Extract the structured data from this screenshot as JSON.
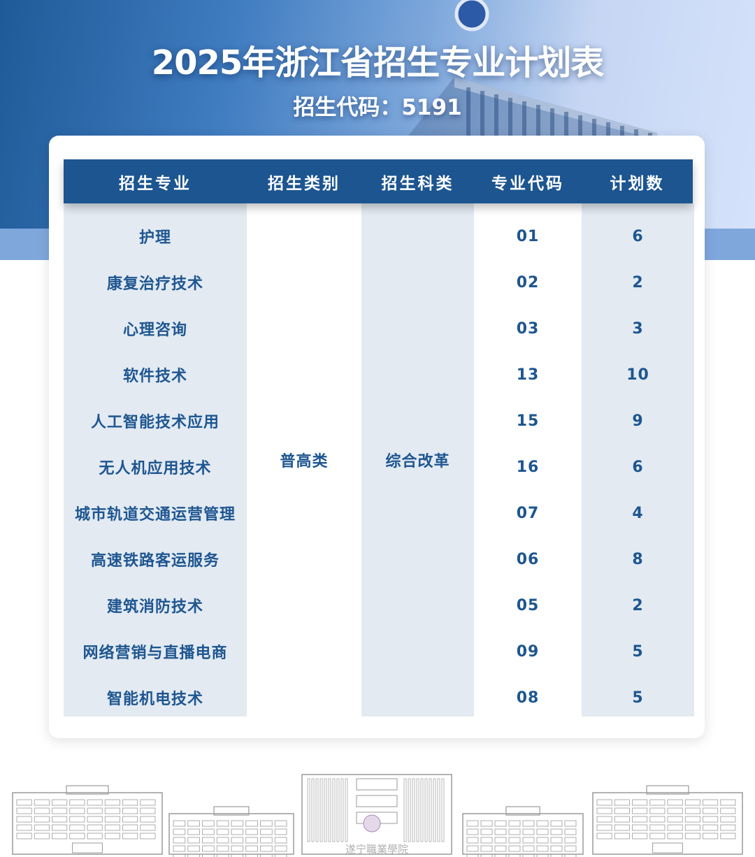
{
  "header": {
    "title": "2025年浙江省招生专业计划表",
    "code_label": "招生代码：5191"
  },
  "table": {
    "columns": [
      "招生专业",
      "招生类别",
      "招生科类",
      "专业代码",
      "计划数"
    ],
    "category": "普高类",
    "subject_type": "综合改革",
    "rows": [
      {
        "major": "护理",
        "code": "01",
        "plan": "6"
      },
      {
        "major": "康复治疗技术",
        "code": "02",
        "plan": "2"
      },
      {
        "major": "心理咨询",
        "code": "03",
        "plan": "3"
      },
      {
        "major": "软件技术",
        "code": "13",
        "plan": "10"
      },
      {
        "major": "人工智能技术应用",
        "code": "15",
        "plan": "9"
      },
      {
        "major": "无人机应用技术",
        "code": "16",
        "plan": "6"
      },
      {
        "major": "城市轨道交通运营管理",
        "code": "07",
        "plan": "4"
      },
      {
        "major": "高速铁路客运服务",
        "code": "06",
        "plan": "8"
      },
      {
        "major": "建筑消防技术",
        "code": "05",
        "plan": "2"
      },
      {
        "major": "网络营销与直播电商",
        "code": "09",
        "plan": "5"
      },
      {
        "major": "智能机电技术",
        "code": "08",
        "plan": "5"
      }
    ]
  },
  "footer": {
    "logo_text": "遂宁職業學院"
  },
  "colors": {
    "primary": "#1c5590",
    "text": "#1e5690",
    "shade": "#e3eaf2",
    "band": "#7fa7dc"
  }
}
